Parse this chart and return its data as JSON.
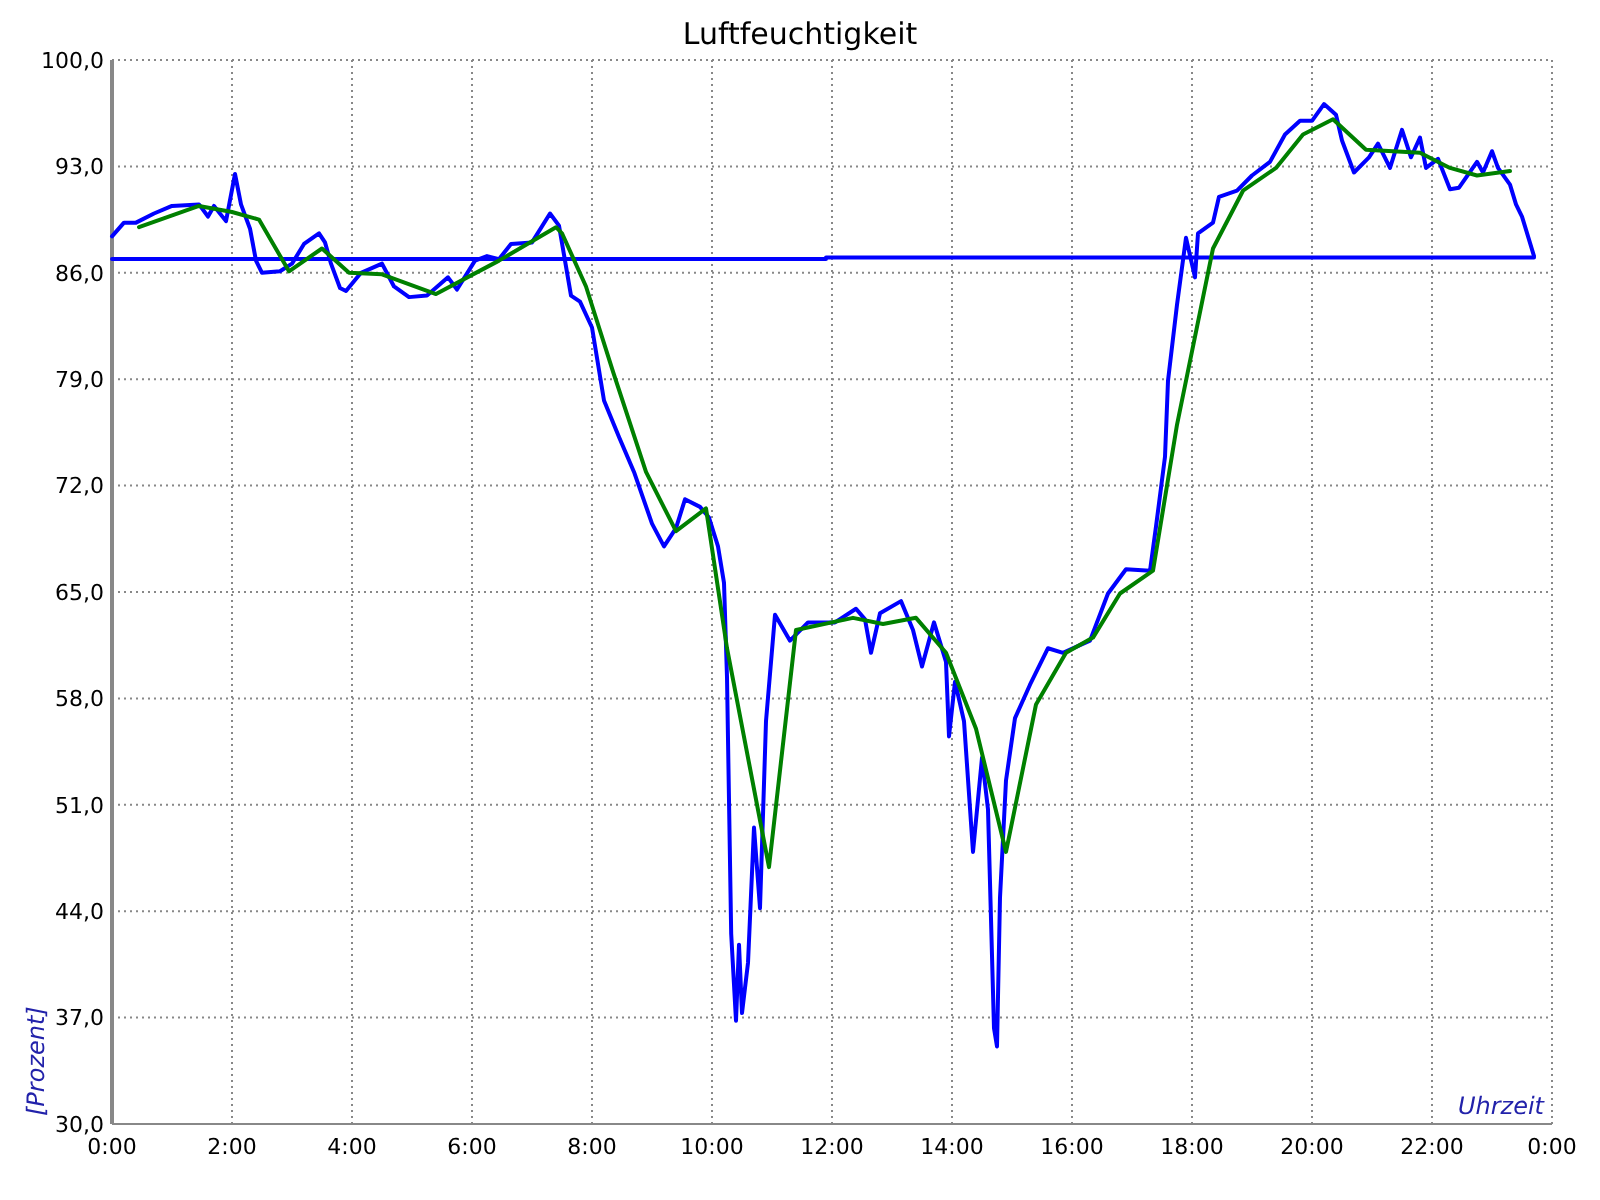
{
  "chart_data": {
    "type": "line",
    "title": "Luftfeuchtigkeit",
    "xlabel": "Uhrzeit",
    "ylabel": "[Prozent]",
    "xlim": [
      0,
      24
    ],
    "ylim": [
      30,
      100
    ],
    "xticks": [
      {
        "value": 0,
        "label": "0:00"
      },
      {
        "value": 2,
        "label": "2:00"
      },
      {
        "value": 4,
        "label": "4:00"
      },
      {
        "value": 6,
        "label": "6:00"
      },
      {
        "value": 8,
        "label": "8:00"
      },
      {
        "value": 10,
        "label": "10:00"
      },
      {
        "value": 12,
        "label": "12:00"
      },
      {
        "value": 14,
        "label": "14:00"
      },
      {
        "value": 16,
        "label": "16:00"
      },
      {
        "value": 18,
        "label": "18:00"
      },
      {
        "value": 20,
        "label": "20:00"
      },
      {
        "value": 22,
        "label": "22:00"
      },
      {
        "value": 24,
        "label": "0:00"
      }
    ],
    "yticks": [
      {
        "value": 30,
        "label": "30,0"
      },
      {
        "value": 37,
        "label": "37,0"
      },
      {
        "value": 44,
        "label": "44,0"
      },
      {
        "value": 51,
        "label": "51,0"
      },
      {
        "value": 58,
        "label": "58,0"
      },
      {
        "value": 65,
        "label": "65,0"
      },
      {
        "value": 72,
        "label": "72,0"
      },
      {
        "value": 79,
        "label": "79,0"
      },
      {
        "value": 86,
        "label": "86,0"
      },
      {
        "value": 93,
        "label": "93,0"
      },
      {
        "value": 100,
        "label": "100,0"
      }
    ],
    "grid": true,
    "line_style": "solid",
    "series": [
      {
        "color": "#0000ff",
        "x": [
          0,
          11.9,
          11.9,
          23.7
        ],
        "values": [
          86.9,
          86.9,
          87.0,
          87.0
        ]
      },
      {
        "color": "#0000ff",
        "x": [
          0,
          0.2,
          0.4,
          0.7,
          1.0,
          1.45,
          1.6,
          1.7,
          1.9,
          2.05,
          2.15,
          2.3,
          2.4,
          2.5,
          2.8,
          3.0,
          3.2,
          3.45,
          3.55,
          3.65,
          3.8,
          3.9,
          4.15,
          4.5,
          4.7,
          4.95,
          5.25,
          5.6,
          5.75,
          6.05,
          6.25,
          6.45,
          6.65,
          7.0,
          7.3,
          7.45,
          7.55,
          7.65,
          7.8,
          8.0,
          8.2,
          8.45,
          8.7,
          9.0,
          9.2,
          9.4,
          9.55,
          9.8,
          9.95,
          10.1,
          10.2,
          10.25,
          10.28,
          10.32,
          10.4,
          10.45,
          10.5,
          10.6,
          10.7,
          10.8,
          10.9,
          11.05,
          11.3,
          11.6,
          12.05,
          12.4,
          12.55,
          12.65,
          12.8,
          13.15,
          13.35,
          13.5,
          13.7,
          13.9,
          13.95,
          14.05,
          14.2,
          14.35,
          14.5,
          14.6,
          14.7,
          14.75,
          14.8,
          14.9,
          15.05,
          15.3,
          15.6,
          15.85,
          16.3,
          16.6,
          16.9,
          17.3,
          17.4,
          17.55,
          17.6,
          17.75,
          17.9,
          18.05,
          18.1,
          18.35,
          18.45,
          18.75,
          19.0,
          19.3,
          19.55,
          19.8,
          20.0,
          20.2,
          20.4,
          20.5,
          20.7,
          20.95,
          21.1,
          21.3,
          21.5,
          21.65,
          21.8,
          21.9,
          22.1,
          22.3,
          22.45,
          22.75,
          22.85,
          23.0,
          23.1,
          23.3,
          23.4,
          23.5,
          23.7
        ],
        "values": [
          88.4,
          89.3,
          89.3,
          89.9,
          90.4,
          90.5,
          89.7,
          90.4,
          89.4,
          92.5,
          90.5,
          88.9,
          86.8,
          86.0,
          86.1,
          86.6,
          87.9,
          88.6,
          88.0,
          86.6,
          85.0,
          84.8,
          86.0,
          86.6,
          85.1,
          84.4,
          84.5,
          85.7,
          84.9,
          86.8,
          87.1,
          86.9,
          87.9,
          88.0,
          89.9,
          89.1,
          86.8,
          84.5,
          84.1,
          82.4,
          77.6,
          75.2,
          72.9,
          69.5,
          68.0,
          69.2,
          71.1,
          70.6,
          69.9,
          68.0,
          65.6,
          59.4,
          52.1,
          42.5,
          36.8,
          41.8,
          37.3,
          40.6,
          49.5,
          44.2,
          56.5,
          63.5,
          61.8,
          63.0,
          63.0,
          63.9,
          63.2,
          61.0,
          63.6,
          64.4,
          62.5,
          60.1,
          63.0,
          60.4,
          55.5,
          59.1,
          56.5,
          47.9,
          54.1,
          50.7,
          36.3,
          35.1,
          44.9,
          52.6,
          56.7,
          58.9,
          61.3,
          61.0,
          61.8,
          64.9,
          66.5,
          66.4,
          69.3,
          73.9,
          78.9,
          83.9,
          88.3,
          85.7,
          88.6,
          89.3,
          91.0,
          91.4,
          92.4,
          93.3,
          95.1,
          96.0,
          96.0,
          97.1,
          96.4,
          94.7,
          92.6,
          93.6,
          94.5,
          92.9,
          95.4,
          93.6,
          94.9,
          92.9,
          93.5,
          91.5,
          91.6,
          93.3,
          92.6,
          94.0,
          92.9,
          91.8,
          90.5,
          89.7,
          87.1
        ]
      },
      {
        "color": "#008000",
        "x": [
          0.45,
          1.45,
          2.0,
          2.45,
          2.95,
          3.5,
          3.95,
          4.5,
          5.4,
          6.45,
          7.4,
          7.5,
          7.9,
          8.35,
          8.9,
          9.4,
          9.9,
          10.25,
          10.95,
          11.4,
          12.35,
          12.85,
          13.4,
          13.9,
          14.4,
          14.9,
          15.4,
          15.9,
          16.35,
          16.8,
          17.35,
          17.75,
          18.35,
          18.85,
          19.4,
          19.85,
          20.35,
          20.9,
          21.8,
          22.3,
          22.75,
          23.3
        ],
        "values": [
          89.0,
          90.4,
          90.0,
          89.5,
          86.1,
          87.6,
          86.0,
          85.9,
          84.6,
          86.8,
          89.0,
          88.6,
          85.1,
          79.5,
          72.9,
          69.0,
          70.5,
          61.3,
          46.9,
          62.5,
          63.3,
          62.9,
          63.3,
          61.0,
          56.0,
          47.9,
          57.6,
          61.0,
          62.0,
          64.9,
          66.4,
          76.0,
          87.6,
          91.4,
          92.9,
          95.1,
          96.1,
          94.1,
          93.9,
          92.9,
          92.4,
          92.7
        ]
      }
    ]
  }
}
